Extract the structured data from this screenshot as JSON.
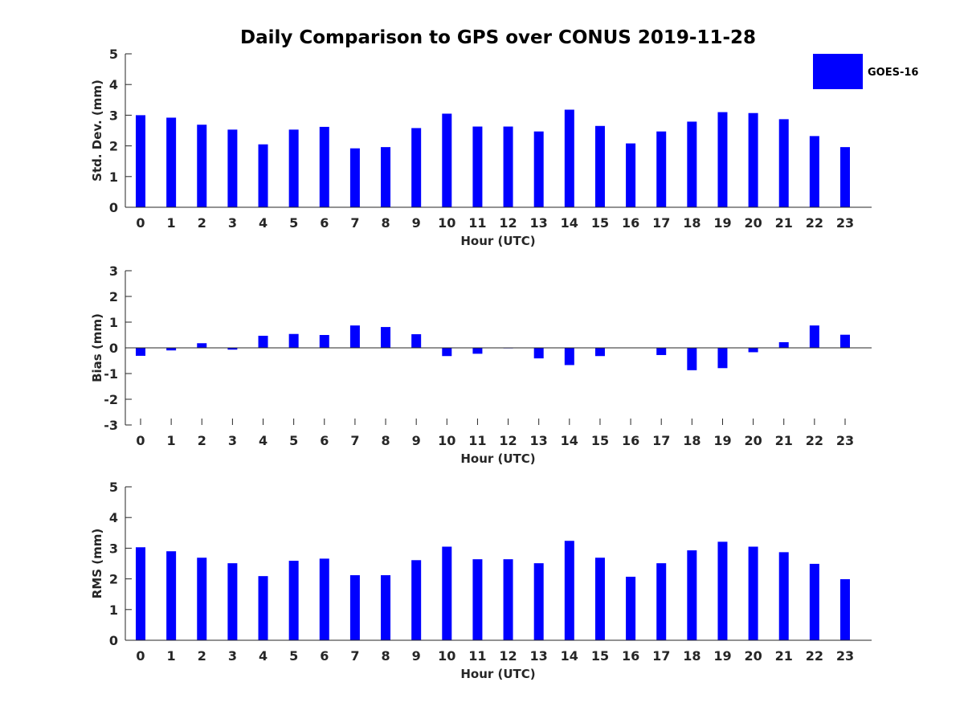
{
  "chart_data": {
    "type": "bar",
    "title": "Daily Comparison to GPS over CONUS 2019-11-28",
    "legend": {
      "entries": [
        "GOES-16"
      ],
      "placement": "top-right"
    },
    "series_color": "#0000ff",
    "subplots": [
      {
        "ylabel": "Std. Dev. (mm)",
        "xlabel": "Hour (UTC)",
        "ylim": [
          0,
          5
        ],
        "yticks": [
          0,
          1,
          2,
          3,
          4,
          5
        ],
        "categories": [
          "0",
          "1",
          "2",
          "3",
          "4",
          "5",
          "6",
          "7",
          "8",
          "9",
          "10",
          "11",
          "12",
          "13",
          "14",
          "15",
          "16",
          "17",
          "18",
          "19",
          "20",
          "21",
          "22",
          "23"
        ],
        "series": [
          {
            "name": "GOES-16",
            "values": [
              3.0,
              2.92,
              2.69,
              2.53,
              2.05,
              2.53,
              2.62,
              1.92,
              1.96,
              2.58,
              3.05,
              2.63,
              2.63,
              2.47,
              3.18,
              2.65,
              2.08,
              2.47,
              2.79,
              3.1,
              3.07,
              2.87,
              2.32,
              1.96
            ]
          }
        ]
      },
      {
        "ylabel": "Bias (mm)",
        "xlabel": "Hour (UTC)",
        "ylim": [
          -3,
          3
        ],
        "yticks": [
          -3,
          -2,
          -1,
          0,
          1,
          2,
          3
        ],
        "categories": [
          "0",
          "1",
          "2",
          "3",
          "4",
          "5",
          "6",
          "7",
          "8",
          "9",
          "10",
          "11",
          "12",
          "13",
          "14",
          "15",
          "16",
          "17",
          "18",
          "19",
          "20",
          "21",
          "22",
          "23"
        ],
        "series": [
          {
            "name": "GOES-16",
            "values": [
              -0.31,
              -0.1,
              0.18,
              -0.07,
              0.47,
              0.54,
              0.5,
              0.87,
              0.81,
              0.53,
              -0.32,
              -0.23,
              -0.02,
              -0.41,
              -0.67,
              -0.32,
              -0.01,
              -0.28,
              -0.87,
              -0.79,
              -0.17,
              0.22,
              0.87,
              0.51
            ]
          }
        ]
      },
      {
        "ylabel": "RMS (mm)",
        "xlabel": "Hour (UTC)",
        "ylim": [
          0,
          5
        ],
        "yticks": [
          0,
          1,
          2,
          3,
          4,
          5
        ],
        "categories": [
          "0",
          "1",
          "2",
          "3",
          "4",
          "5",
          "6",
          "7",
          "8",
          "9",
          "10",
          "11",
          "12",
          "13",
          "14",
          "15",
          "16",
          "17",
          "18",
          "19",
          "20",
          "21",
          "22",
          "23"
        ],
        "series": [
          {
            "name": "GOES-16",
            "values": [
              3.03,
              2.9,
              2.69,
              2.51,
              2.09,
              2.59,
              2.66,
              2.12,
              2.12,
              2.61,
              3.05,
              2.64,
              2.64,
              2.51,
              3.24,
              2.69,
              2.07,
              2.51,
              2.93,
              3.21,
              3.05,
              2.87,
              2.49,
              1.99
            ]
          }
        ]
      }
    ]
  }
}
